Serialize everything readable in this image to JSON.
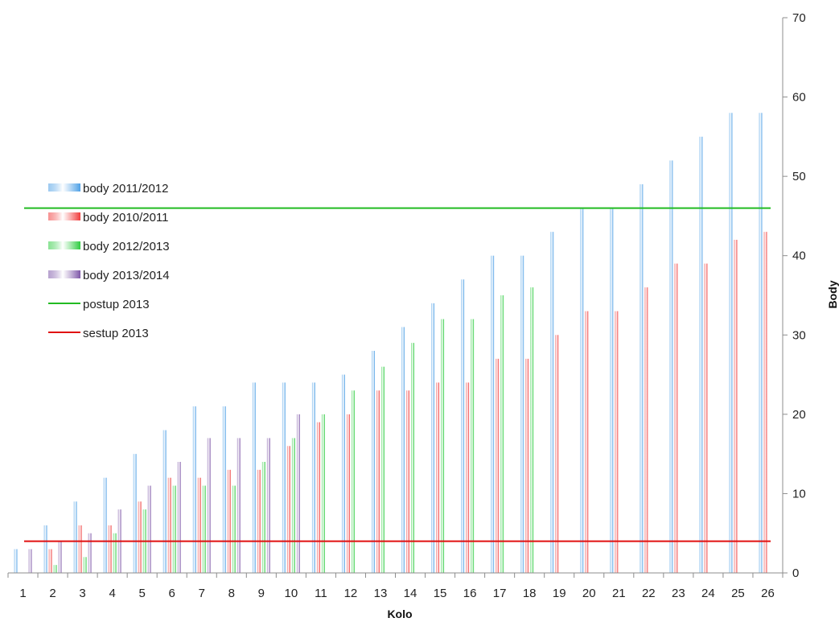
{
  "chart_data": {
    "type": "bar",
    "title": "",
    "xlabel": "Kolo",
    "ylabel": "Body",
    "y_axis_side": "right",
    "ylim": [
      0,
      70
    ],
    "yticks": [
      0,
      10,
      20,
      30,
      40,
      50,
      60,
      70
    ],
    "grid": false,
    "legend_position": "left",
    "categories": [
      "1",
      "2",
      "3",
      "4",
      "5",
      "6",
      "7",
      "8",
      "9",
      "10",
      "11",
      "12",
      "13",
      "14",
      "15",
      "16",
      "17",
      "18",
      "19",
      "20",
      "21",
      "22",
      "23",
      "24",
      "25",
      "26"
    ],
    "series": [
      {
        "name": "body 2011/2012",
        "color": "#4ea0e6",
        "values": [
          3,
          6,
          9,
          12,
          15,
          18,
          21,
          21,
          24,
          24,
          24,
          25,
          28,
          31,
          34,
          37,
          40,
          40,
          43,
          46,
          46,
          49,
          52,
          55,
          58,
          58
        ]
      },
      {
        "name": "body 2010/2011",
        "color": "#f03c3c",
        "values": [
          0,
          3,
          6,
          6,
          9,
          12,
          12,
          13,
          13,
          16,
          19,
          20,
          23,
          23,
          24,
          24,
          27,
          27,
          30,
          33,
          33,
          36,
          39,
          39,
          42,
          43
        ]
      },
      {
        "name": "body 2012/2013",
        "color": "#2ecc40",
        "values": [
          0,
          1,
          2,
          5,
          8,
          11,
          11,
          11,
          14,
          17,
          20,
          23,
          26,
          29,
          32,
          32,
          35,
          36,
          null,
          null,
          null,
          null,
          null,
          null,
          null,
          null
        ]
      },
      {
        "name": "body 2013/2014",
        "color": "#7e57a8",
        "values": [
          3,
          4,
          5,
          8,
          11,
          14,
          17,
          17,
          17,
          20,
          null,
          null,
          null,
          null,
          null,
          null,
          null,
          null,
          null,
          null,
          null,
          null,
          null,
          null,
          null,
          null
        ]
      }
    ],
    "reference_lines": [
      {
        "name": "postup 2013",
        "value": 46,
        "color": "#22bb22"
      },
      {
        "name": "sestup 2013",
        "value": 4,
        "color": "#e01010"
      }
    ]
  }
}
